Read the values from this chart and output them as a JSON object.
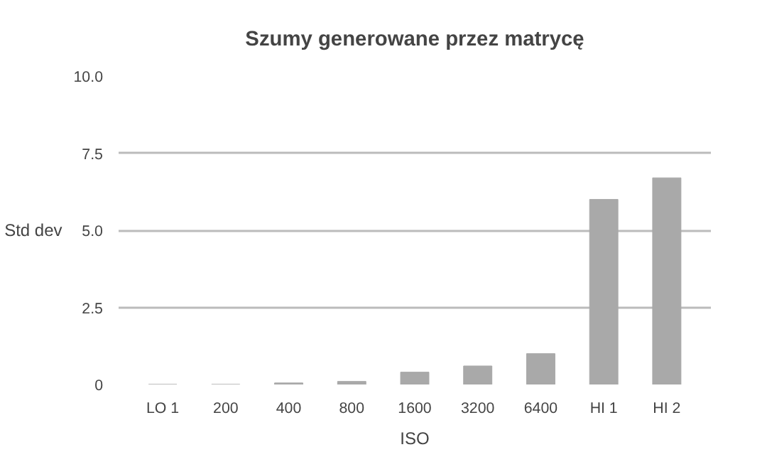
{
  "chart_data": {
    "type": "bar",
    "title": "Szumy generowane przez matrycę",
    "xlabel": "ISO",
    "ylabel": "Std dev",
    "categories": [
      "LO 1",
      "200",
      "400",
      "800",
      "1600",
      "3200",
      "6400",
      "HI 1",
      "HI 2"
    ],
    "values": [
      0,
      0,
      0.05,
      0.1,
      0.4,
      0.6,
      1.0,
      6.0,
      6.7
    ],
    "color": "#a9a9a9",
    "ylim": [
      0,
      10
    ],
    "yticks": [
      {
        "value": 0,
        "label": "0"
      },
      {
        "value": 2.5,
        "label": "2.5"
      },
      {
        "value": 5,
        "label": "5.0"
      },
      {
        "value": 7.5,
        "label": "7.5"
      },
      {
        "value": 10,
        "label": "10.0"
      }
    ],
    "grid": "y"
  }
}
